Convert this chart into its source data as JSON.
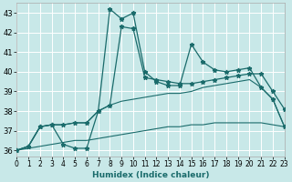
{
  "title": "",
  "xlabel": "Humidex (Indice chaleur)",
  "xlim": [
    0,
    23
  ],
  "ylim": [
    35.7,
    43.5
  ],
  "xticks": [
    0,
    1,
    2,
    3,
    4,
    5,
    6,
    7,
    8,
    9,
    10,
    11,
    12,
    13,
    14,
    15,
    16,
    17,
    18,
    19,
    20,
    21,
    22,
    23
  ],
  "yticks": [
    36,
    37,
    38,
    39,
    40,
    41,
    42,
    43
  ],
  "bg_color": "#c8e8e8",
  "grid_color": "#ffffff",
  "line_color": "#1a6b6b",
  "lines": [
    [
      36.0,
      36.2,
      37.2,
      37.3,
      36.3,
      36.1,
      36.1,
      38.0,
      43.2,
      42.7,
      43.0,
      40.0,
      39.5,
      39.3,
      39.3,
      41.4,
      40.5,
      40.1,
      40.0,
      40.1,
      40.2,
      39.2,
      38.6,
      37.2
    ],
    [
      36.0,
      36.2,
      37.2,
      37.3,
      37.3,
      37.4,
      37.4,
      38.0,
      38.3,
      42.3,
      42.2,
      39.7,
      39.6,
      39.5,
      39.4,
      39.4,
      39.5,
      39.6,
      39.7,
      39.8,
      39.9,
      39.9,
      39.0,
      38.1
    ],
    [
      36.0,
      36.2,
      37.2,
      37.3,
      37.3,
      37.4,
      37.4,
      38.0,
      38.3,
      38.5,
      38.6,
      38.7,
      38.8,
      38.9,
      38.9,
      39.0,
      39.2,
      39.3,
      39.4,
      39.5,
      39.6,
      39.2,
      38.6,
      37.2
    ],
    [
      36.0,
      36.1,
      36.2,
      36.3,
      36.4,
      36.5,
      36.5,
      36.6,
      36.7,
      36.8,
      36.9,
      37.0,
      37.1,
      37.2,
      37.2,
      37.3,
      37.3,
      37.4,
      37.4,
      37.4,
      37.4,
      37.4,
      37.3,
      37.2
    ]
  ],
  "has_markers": [
    true,
    true,
    false,
    false
  ],
  "lws": [
    0.9,
    0.9,
    0.8,
    0.8
  ]
}
